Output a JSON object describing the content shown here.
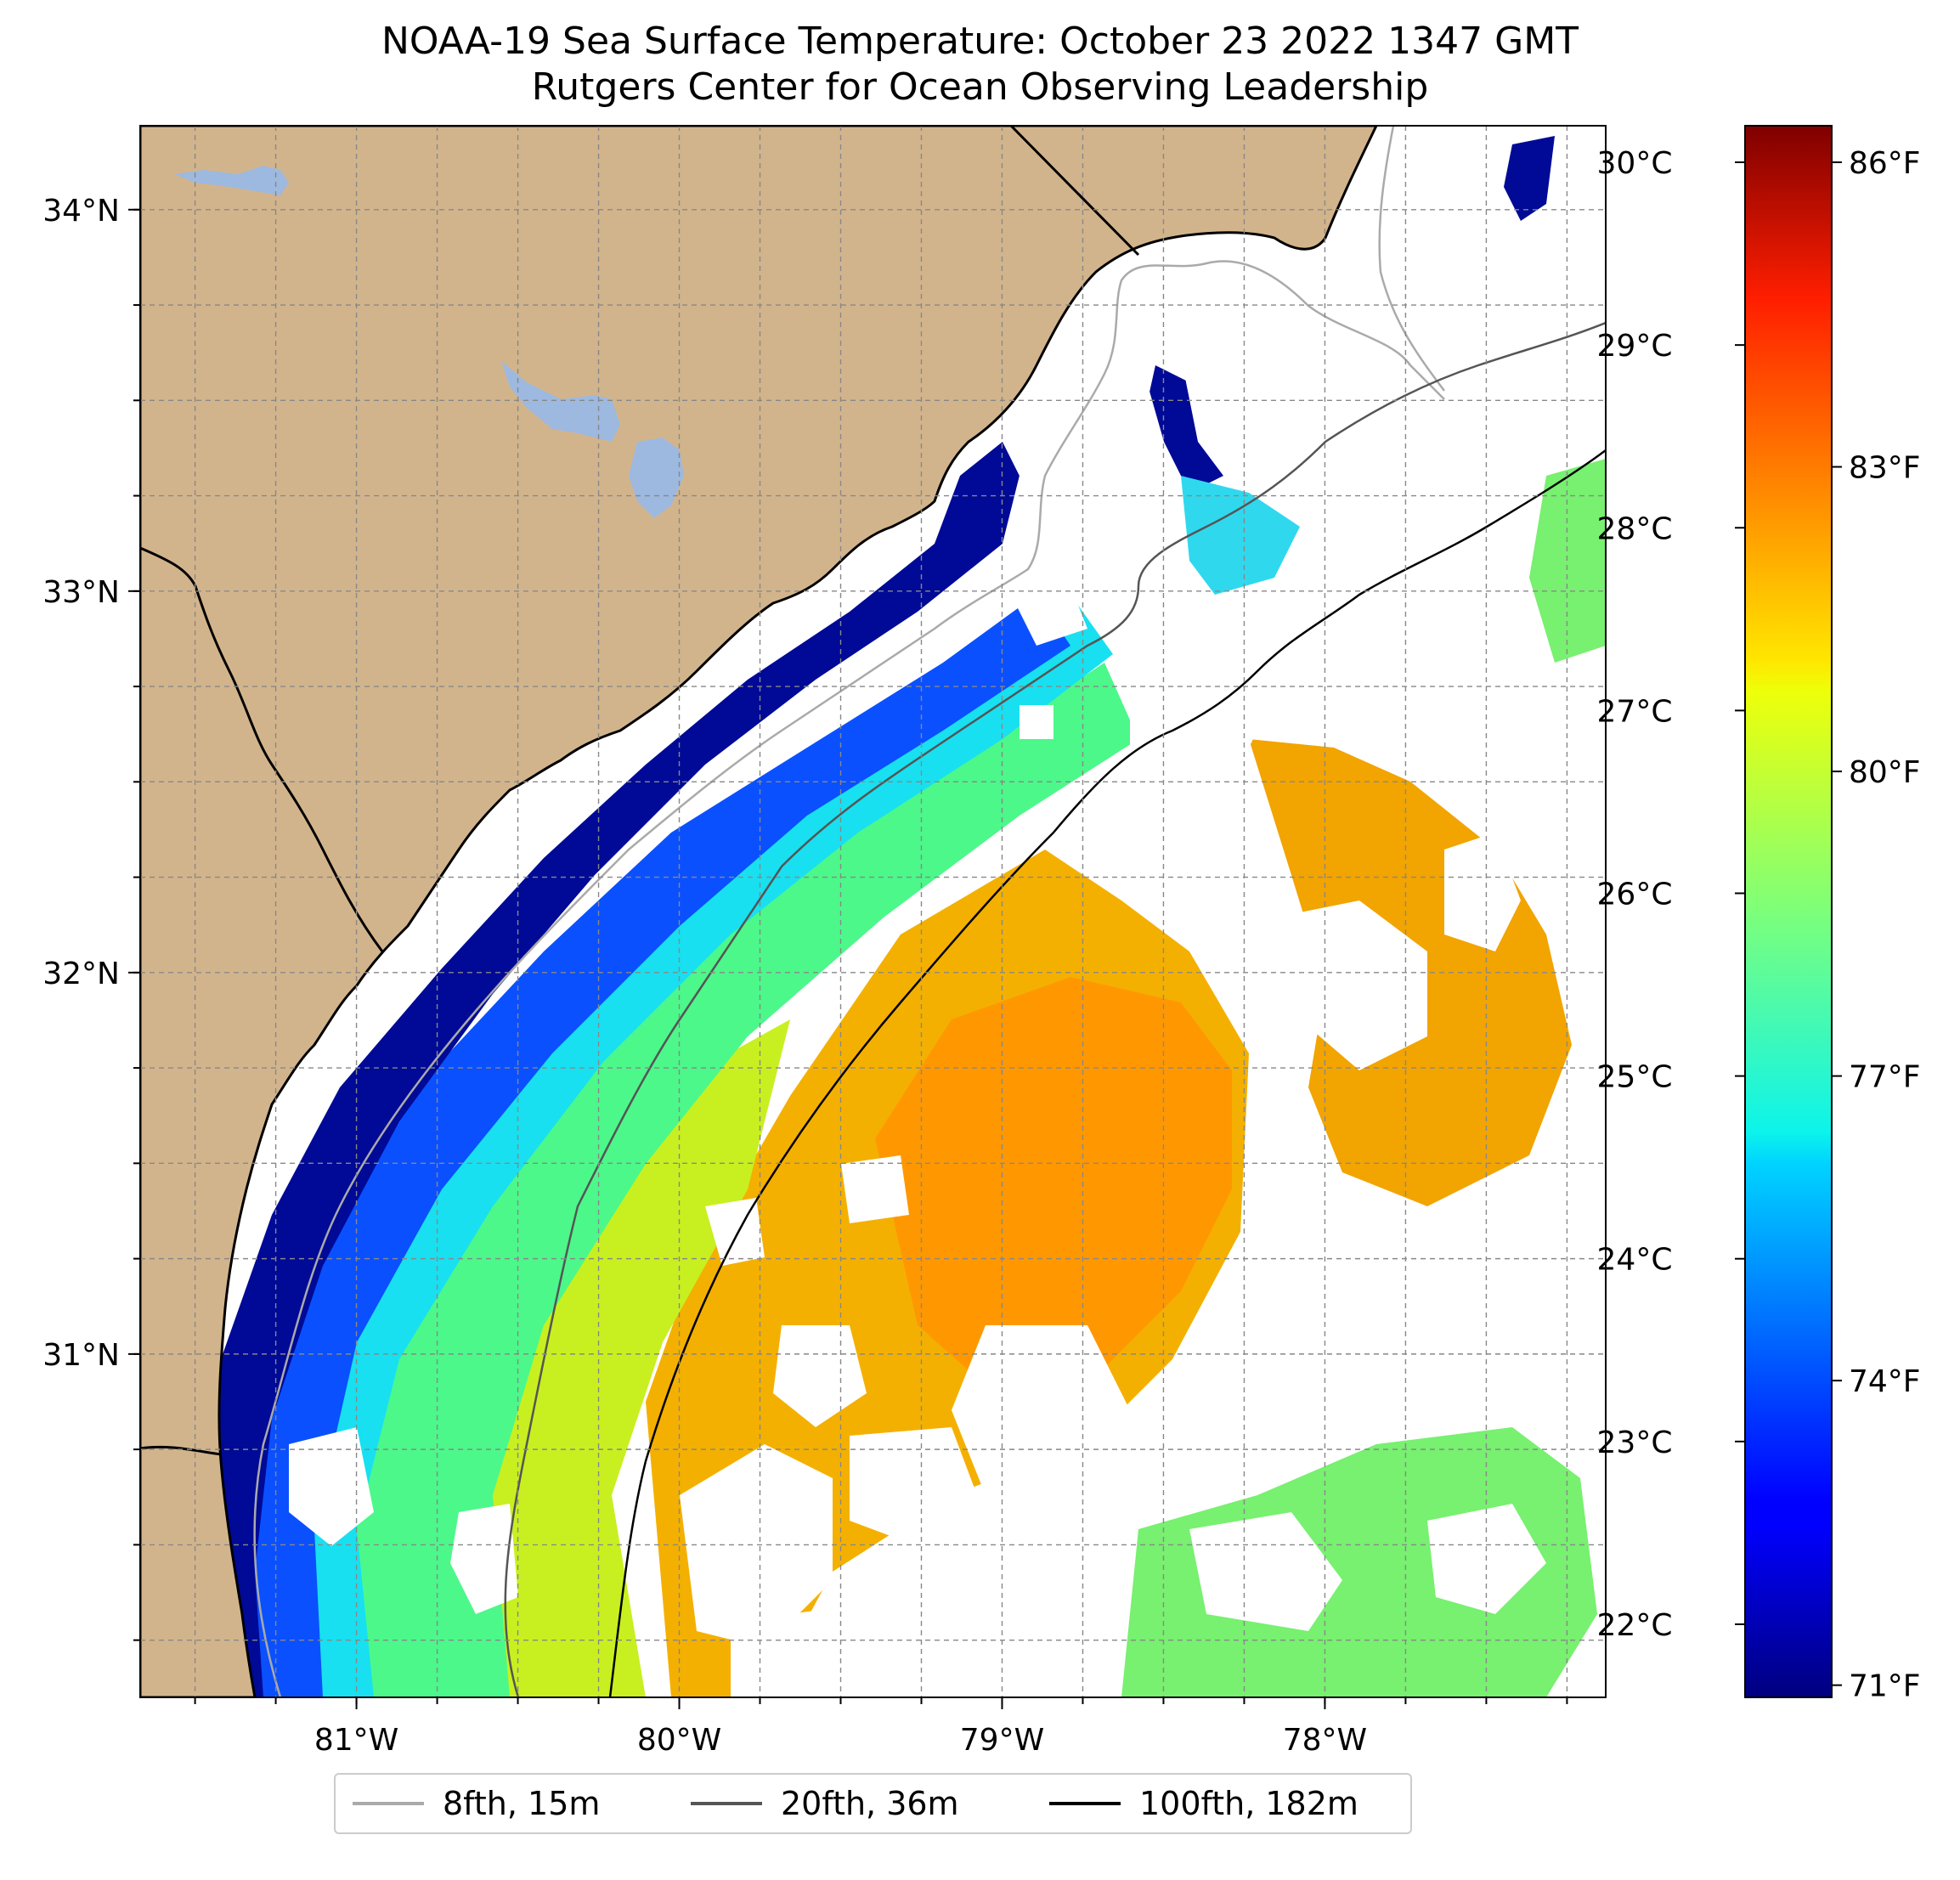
{
  "title": "NOAA-19 Sea Surface Temperature: October 23 2022 1347 GMT",
  "subtitle": "Rutgers Center for Ocean Observing Leadership",
  "map": {
    "extent": {
      "lon_min": -81.67,
      "lon_max": -77.13,
      "lat_min": 30.1,
      "lat_max": 34.22
    },
    "longitude_ticks": [
      -81,
      -80,
      -79,
      -78
    ],
    "longitude_tick_labels": [
      "81°W",
      "80°W",
      "79°W",
      "78°W"
    ],
    "latitude_ticks": [
      31,
      32,
      33,
      34
    ],
    "latitude_tick_labels": [
      "31°N",
      "32°N",
      "33°N",
      "34°N"
    ],
    "gridlines": true,
    "land_color": "#d2b48c",
    "lake_color": "#9db9e0",
    "no_data_color": "#ffffff"
  },
  "colorbar": {
    "colormap": "jet",
    "celsius_min": 21.6,
    "celsius_max": 30.2,
    "celsius_ticks": [
      22,
      23,
      24,
      25,
      26,
      27,
      28,
      29,
      30
    ],
    "celsius_labels": [
      "22°C",
      "23°C",
      "24°C",
      "25°C",
      "26°C",
      "27°C",
      "28°C",
      "29°C",
      "30°C"
    ],
    "fahrenheit_ticks": [
      71,
      74,
      77,
      80,
      83,
      86
    ],
    "fahrenheit_labels": [
      "71°F",
      "74°F",
      "77°F",
      "80°F",
      "83°F",
      "86°F"
    ]
  },
  "legend": {
    "position": "bottom-center",
    "items": [
      {
        "label": "8fth, 15m",
        "color": "#aaaaaa"
      },
      {
        "label": "20fth, 36m",
        "color": "#555555"
      },
      {
        "label": "100fth, 182m",
        "color": "#000000"
      }
    ]
  }
}
